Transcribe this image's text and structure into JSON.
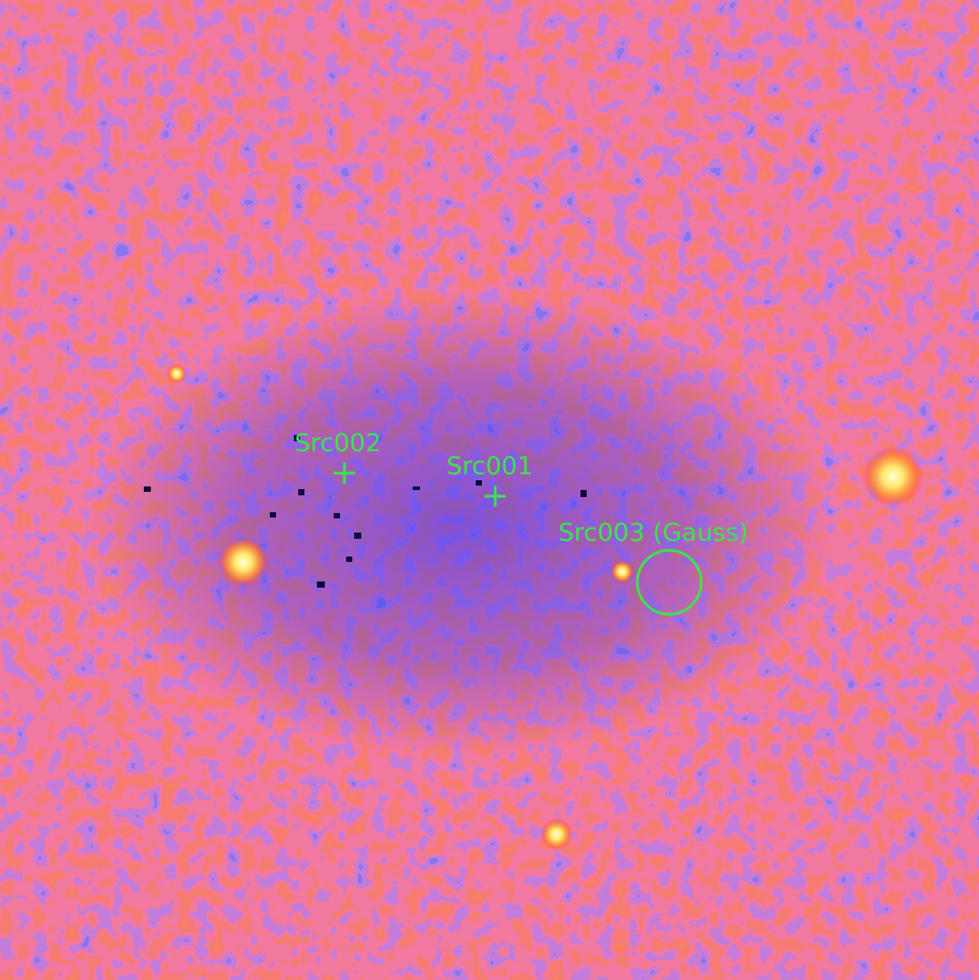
{
  "image": {
    "colormap": [
      "#1a2bff",
      "#5a37d8",
      "#e2302b",
      "#ff3a1c",
      "#ffe86a",
      "#ffffd8"
    ],
    "overlay_color": "#39e64a"
  },
  "sources": [
    {
      "id": "src001",
      "label": "Src001",
      "marker": "cross"
    },
    {
      "id": "src002",
      "label": "Src002",
      "marker": "cross"
    },
    {
      "id": "src003",
      "label": "Src003 (Gauss)",
      "marker": "circle"
    }
  ]
}
